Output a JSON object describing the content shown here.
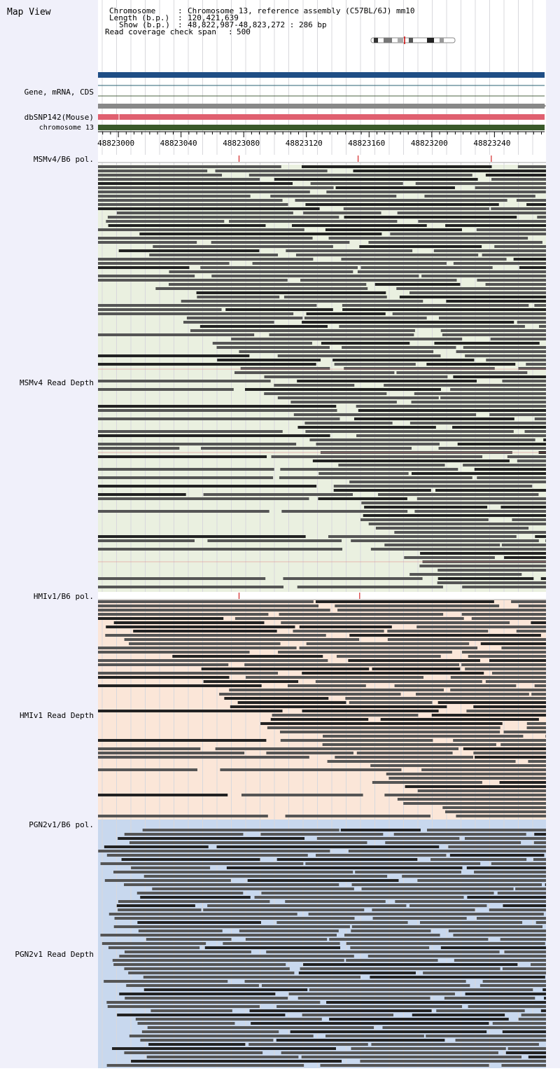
{
  "app": {
    "title": "Map View"
  },
  "info": {
    "chromosome_label": "Chromosome",
    "chromosome_value": "Chromosome 13, reference assembly (C57BL/6J) mm10",
    "length_label": "Length (b.p.)",
    "length_value": "120,421,639",
    "show_label": "Show (b.p.)",
    "show_value": "48,822,987-48,823,272 : 286 bp",
    "coverage_label": "Read coverage check span",
    "coverage_value": "500"
  },
  "tracks": {
    "gene": "Gene, mRNA, CDS",
    "snp": "dbSNP142(Mouse)",
    "chrom": "chromosome 13",
    "msm_pol": "MSMv4/B6 pol.",
    "msm_depth": "MSMv4 Read Depth",
    "hmi_pol": "HMIv1/B6 pol.",
    "hmi_depth": "HMIv1 Read Depth",
    "pgn_pol": "PGN2v1/B6 pol.",
    "pgn_depth": "PGN2v1 Read Depth"
  },
  "ruler": {
    "start": 48822987,
    "end": 48823272,
    "ticks": [
      "48823000",
      "48823040",
      "48823080",
      "48823120",
      "48823160",
      "48823200",
      "48823240"
    ]
  },
  "colors": {
    "gene_bar": "#1f4e85",
    "gray_bar": "#888888",
    "snp_bar": "#e06070",
    "chrom_bar": "#3a5a2a",
    "msm_bg": "#eaf0e0",
    "hmi_bg": "#fbe6d8",
    "pgn_bg": "#c8d8ee",
    "read": "#555555",
    "read_dark": "#222222",
    "pol_mark": "#cc0000"
  }
}
